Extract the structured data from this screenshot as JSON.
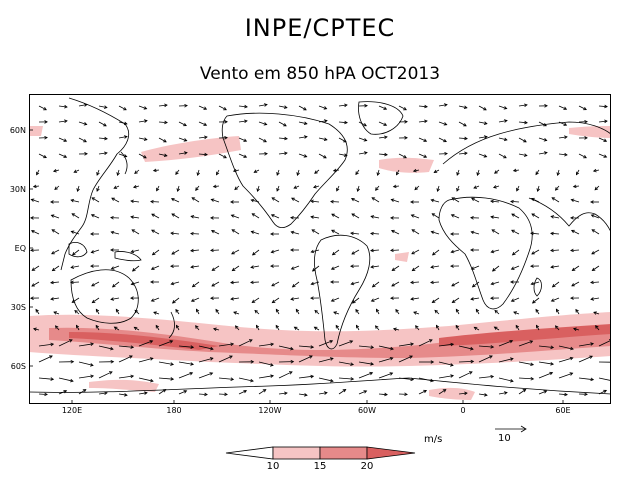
{
  "header": {
    "title": "INPE/CPTEC",
    "subtitle": "Vento em 850 hPA OCT2013"
  },
  "map": {
    "lat_labels": [
      "60N",
      "30N",
      "EQ",
      "30S",
      "60S"
    ],
    "lon_labels": [
      "120E",
      "180",
      "120W",
      "60W",
      "0",
      "60E"
    ],
    "shading_colors": [
      "#ffffff",
      "#f6c4c4",
      "#e68a8a",
      "#d96060"
    ]
  },
  "legend": {
    "units": "m/s",
    "reference_vector": "10",
    "colorbar_levels": [
      "10",
      "15",
      "20"
    ]
  }
}
